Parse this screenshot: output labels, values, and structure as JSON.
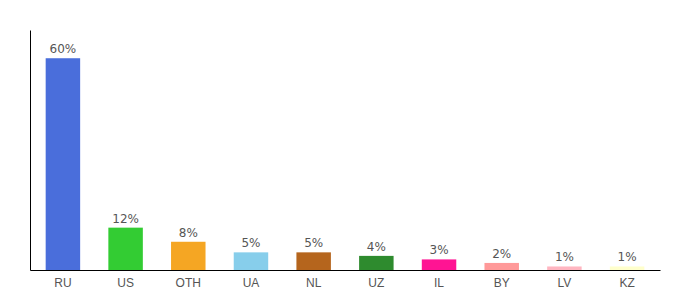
{
  "chart_data": {
    "type": "bar",
    "categories": [
      "RU",
      "US",
      "OTH",
      "UA",
      "NL",
      "UZ",
      "IL",
      "BY",
      "LV",
      "KZ"
    ],
    "values": [
      60,
      12,
      8,
      5,
      5,
      4,
      3,
      2,
      1,
      1
    ],
    "value_labels": [
      "60%",
      "12%",
      "8%",
      "5%",
      "5%",
      "4%",
      "3%",
      "2%",
      "1%",
      "1%"
    ],
    "colors": [
      "#4a6edb",
      "#33cc33",
      "#f5a623",
      "#87ceeb",
      "#b5651d",
      "#2e8b2e",
      "#ff1493",
      "#ff9999",
      "#ffb6c1",
      "#ffffcc"
    ],
    "ylim": [
      0,
      68
    ],
    "data_labels": true,
    "grid": false,
    "tick_labels": "x"
  }
}
